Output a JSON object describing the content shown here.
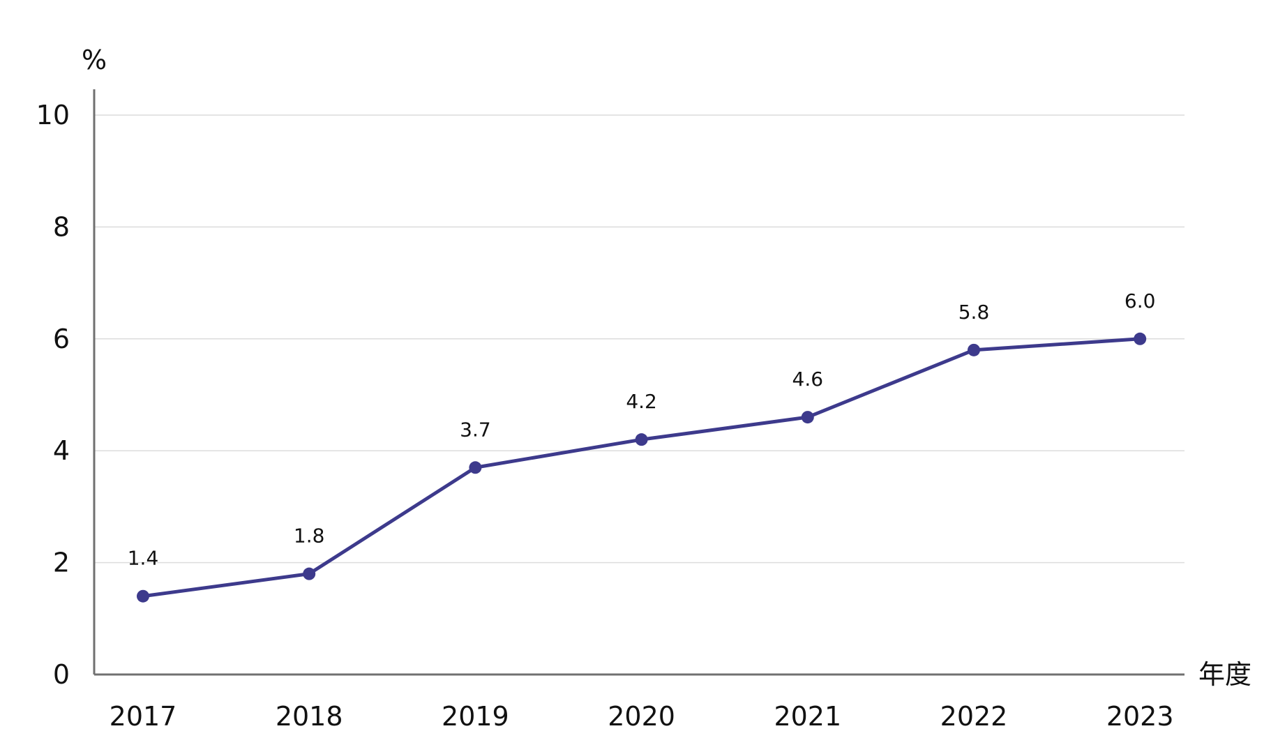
{
  "chart_data": {
    "type": "line",
    "title": "",
    "ylabel": "%",
    "xlabel": "年度",
    "ylim": [
      0,
      10
    ],
    "yticks": [
      0,
      2,
      4,
      6,
      8,
      10
    ],
    "grid": true,
    "categories": [
      "2017",
      "2018",
      "2019",
      "2020",
      "2021",
      "2022",
      "2023"
    ],
    "series": [
      {
        "values": [
          1.4,
          1.8,
          3.7,
          4.2,
          4.6,
          5.8,
          6.0
        ],
        "labels": [
          "1.4",
          "1.8",
          "3.7",
          "4.2",
          "4.6",
          "5.8",
          "6.0"
        ],
        "color": "#3d3a8c"
      }
    ]
  }
}
